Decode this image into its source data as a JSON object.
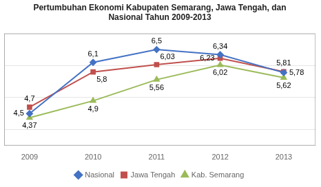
{
  "chart_data": {
    "type": "line",
    "title": "Pertumbuhan Ekonomi Kabupaten Semarang, Jawa Tengah, dan\nNasional Tahun 2009-2013",
    "x": [
      2009,
      2010,
      2011,
      2012,
      2013
    ],
    "series": [
      {
        "name": "Nasional",
        "color": "#4472C4",
        "marker": "diamond",
        "values": [
          4.5,
          6.1,
          6.5,
          6.34,
          5.78
        ],
        "value_labels": [
          "4,5",
          "6,1",
          "6,5",
          "6,34",
          "5,78"
        ]
      },
      {
        "name": "Jawa Tengah",
        "color": "#C0504D",
        "marker": "square",
        "values": [
          4.7,
          5.8,
          6.03,
          6.23,
          5.81
        ],
        "value_labels": [
          "4,7",
          "5,8",
          "6,03",
          "6,23",
          "5,81"
        ]
      },
      {
        "name": "Kab. Semarang",
        "color": "#9BBB59",
        "marker": "triangle",
        "values": [
          4.37,
          4.9,
          5.56,
          6.02,
          5.62
        ],
        "value_labels": [
          "4,37",
          "4,9",
          "5,56",
          "6,02",
          "5,62"
        ]
      }
    ],
    "xlim": [
      2008.6,
      2013.5
    ],
    "xticks": [
      2009,
      2010,
      2011,
      2012,
      2013
    ],
    "ylim": [
      3.5,
      7.0
    ],
    "yticks": [
      4,
      5,
      6,
      7
    ],
    "grid": true,
    "legend": "bottom",
    "data_labels": true,
    "tick_labels": "x"
  }
}
